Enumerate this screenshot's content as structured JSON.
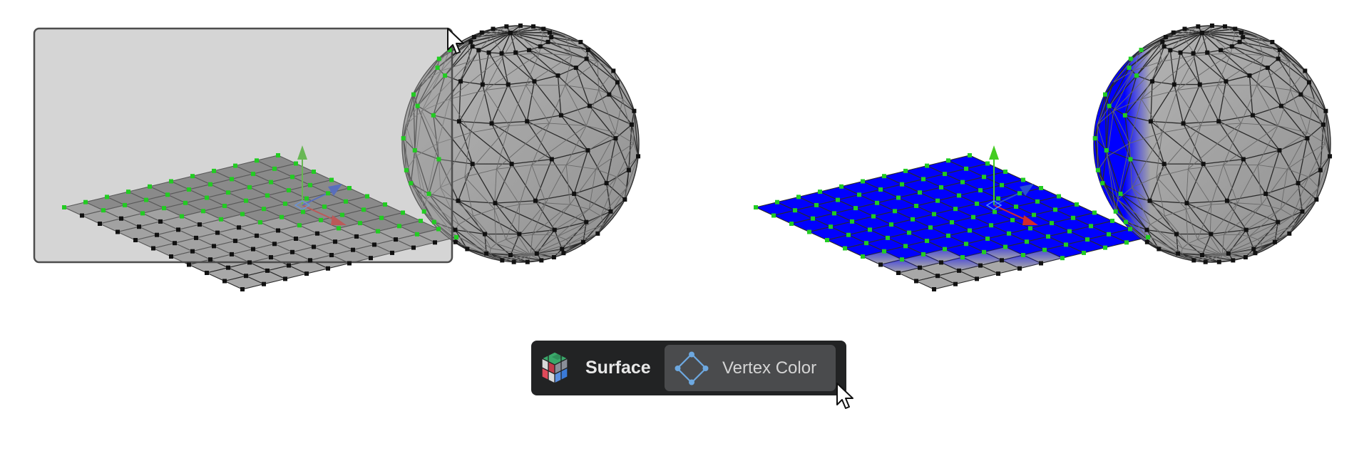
{
  "toolbar": {
    "mode_label": "Surface",
    "active_button_label": "Vertex Color"
  },
  "icons": {
    "mode_icon": "rgb-cube-icon",
    "vertex_color_icon": "vertex-diamond-icon",
    "cursor": "mouse-pointer-icon"
  },
  "colors": {
    "mesh_gray": "#a8a8a8",
    "selected_region": "#7e7e7e",
    "vertex_color_blue": "#0000ff",
    "selected_vertex": "#22cc22",
    "unselected_vertex": "#111111",
    "gizmo_x": "#d42a2a",
    "gizmo_y": "#44cc22",
    "gizmo_z": "#2a4fd4",
    "toolbar_bg": "#222324",
    "button_bg": "#4a4b4d"
  }
}
